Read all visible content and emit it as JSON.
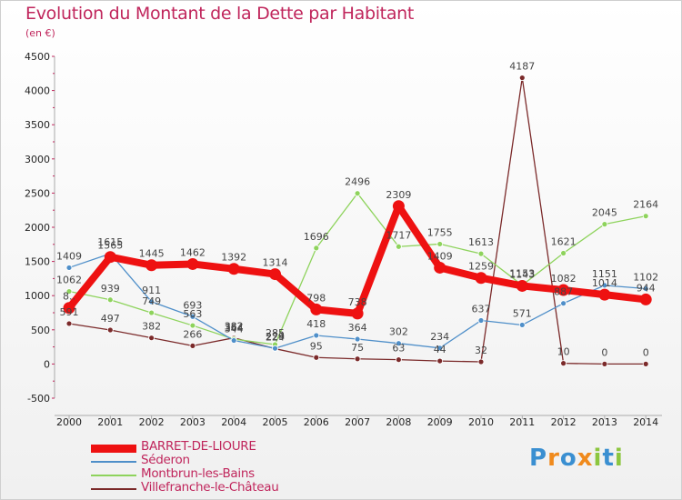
{
  "header": {
    "title": "Evolution du Montant de la Dette par Habitant",
    "unit": "(en €)"
  },
  "brand": {
    "text": "Proxiti",
    "letters": [
      {
        "ch": "P",
        "color": "#3a8fd1"
      },
      {
        "ch": "r",
        "color": "#f08a1c"
      },
      {
        "ch": "o",
        "color": "#3a8fd1"
      },
      {
        "ch": "x",
        "color": "#f08a1c"
      },
      {
        "ch": "i",
        "color": "#8cc63f"
      },
      {
        "ch": "t",
        "color": "#3a8fd1"
      },
      {
        "ch": "i",
        "color": "#8cc63f"
      }
    ]
  },
  "chart_data": {
    "type": "line",
    "x": [
      2000,
      2001,
      2002,
      2003,
      2004,
      2005,
      2006,
      2007,
      2008,
      2009,
      2010,
      2011,
      2012,
      2013,
      2014
    ],
    "ylim": [
      -500,
      4500
    ],
    "yticks": [
      -500,
      0,
      500,
      1000,
      1500,
      2000,
      2500,
      3000,
      3500,
      4000,
      4500
    ],
    "grid": false,
    "legend_position": "bottom-left",
    "series": [
      {
        "name": "BARRET-DE-LIOURE",
        "color": "#ee1111",
        "values": [
          820,
          1565,
          1445,
          1462,
          1392,
          1314,
          798,
          738,
          2309,
          1409,
          1259,
          1143,
          1082,
          1014,
          944
        ],
        "labels": [
          "8..",
          "1565",
          "1445",
          "1462",
          "1392",
          "1314",
          "798",
          "738",
          "2309",
          "1409",
          "1259",
          "1143",
          "1082",
          "1014",
          "944"
        ]
      },
      {
        "name": "Séderon",
        "color": "#4f8fc9",
        "values": [
          1409,
          1615,
          911,
          693,
          344,
          229,
          418,
          364,
          302,
          234,
          637,
          571,
          887,
          1151,
          1102
        ],
        "labels": [
          "1409",
          "1615",
          "911",
          "693",
          "344",
          "229",
          "418",
          "364",
          "302",
          "234",
          "637",
          "571",
          "887",
          "1151",
          "1102"
        ]
      },
      {
        "name": "Montbrun-les-Bains",
        "color": "#8ed35c",
        "values": [
          1062,
          939,
          749,
          563,
          364,
          285,
          1696,
          2496,
          1717,
          1755,
          1613,
          1153,
          1621,
          2045,
          2164
        ],
        "labels": [
          "1062",
          "939",
          "749",
          "563",
          "364",
          "285",
          "1696",
          "2496",
          "1717",
          "1755",
          "1613",
          "1153",
          "1621",
          "2045",
          "2164"
        ]
      },
      {
        "name": "Villefranche-le-Château",
        "color": "#7b2a2a",
        "values": [
          591,
          497,
          382,
          266,
          382,
          224,
          95,
          75,
          63,
          44,
          32,
          4187,
          10,
          0,
          0
        ],
        "labels": [
          "591",
          "497",
          "382",
          "266",
          "382",
          "224",
          "95",
          "75",
          "63",
          "44",
          "32",
          "4187",
          "10",
          "0",
          "0"
        ]
      }
    ]
  }
}
